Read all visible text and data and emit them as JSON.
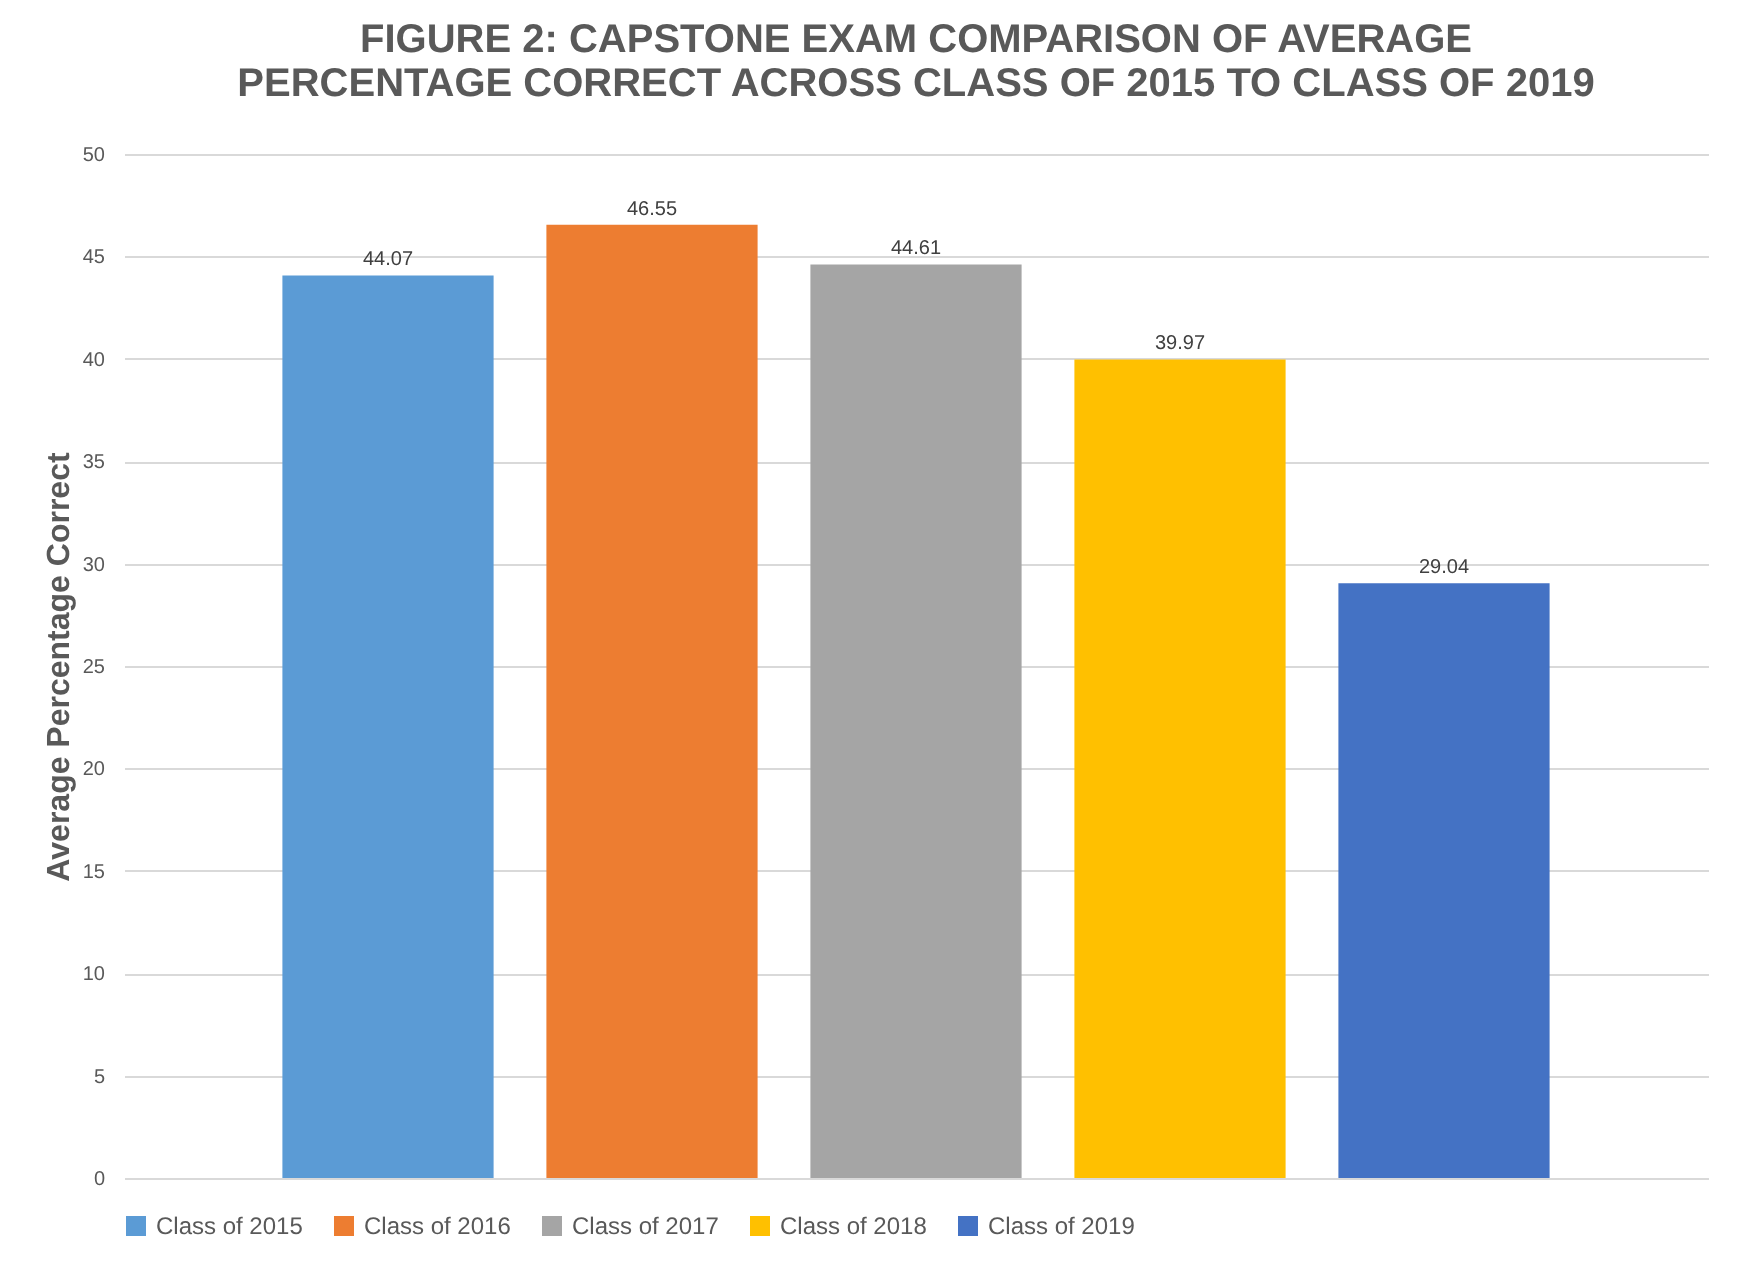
{
  "chart_data": {
    "type": "bar",
    "title": "FIGURE 2:  CAPSTONE EXAM COMPARISON OF AVERAGE PERCENTAGE CORRECT ACROSS CLASS OF 2015 TO CLASS OF 2019",
    "ylabel": "Average Percentage Correct",
    "categories": [
      null,
      null,
      null,
      null,
      null
    ],
    "series": [
      {
        "name": "Class of 2015",
        "color": "#5b9bd5",
        "values": [
          44.07,
          null,
          null,
          null,
          null
        ]
      },
      {
        "name": "Class of 2016",
        "color": "#ed7d31",
        "values": [
          null,
          46.55,
          null,
          null,
          null
        ]
      },
      {
        "name": "Class of 2017",
        "color": "#a5a5a5",
        "values": [
          null,
          null,
          44.61,
          null,
          null
        ]
      },
      {
        "name": "Class of 2018",
        "color": "#ffc000",
        "values": [
          null,
          null,
          null,
          39.97,
          null
        ]
      },
      {
        "name": "Class of 2019",
        "color": "#4472c4",
        "values": [
          null,
          null,
          null,
          null,
          29.04
        ]
      }
    ],
    "ylim": [
      0,
      50
    ],
    "yticks": [
      0,
      5,
      10,
      15,
      20,
      25,
      30,
      35,
      40,
      45,
      50
    ],
    "grid": "y",
    "legend": "bottom",
    "data_labels": true
  }
}
